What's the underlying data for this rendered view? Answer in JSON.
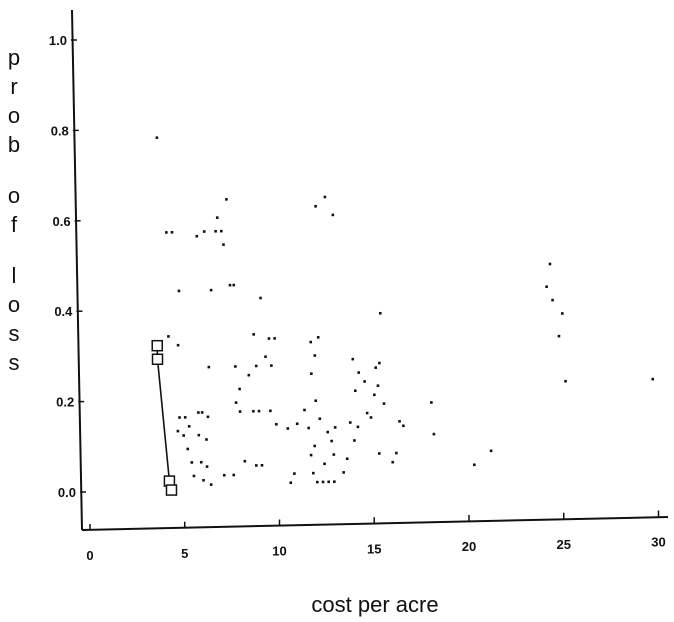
{
  "chart_data": {
    "type": "scatter",
    "title": "",
    "xlabel": "cost per acre",
    "ylabel": "prob of loss",
    "xlim": [
      0,
      30
    ],
    "ylim": [
      0,
      1.0
    ],
    "grid": false,
    "x_ticks": [
      "0",
      "5",
      "10",
      "15",
      "20",
      "25",
      "30"
    ],
    "y_ticks": [
      "0.0",
      "0.2",
      "0.4",
      "0.6",
      "0.8",
      "1.0"
    ],
    "series": [
      {
        "marker": "dot",
        "points": [
          [
            3.9,
            0.78
          ],
          [
            4.3,
            0.57
          ],
          [
            4.6,
            0.57
          ],
          [
            4.3,
            0.34
          ],
          [
            4.8,
            0.32
          ],
          [
            4.9,
            0.44
          ],
          [
            4.8,
            0.16
          ],
          [
            5.1,
            0.16
          ],
          [
            5.3,
            0.14
          ],
          [
            5.0,
            0.12
          ],
          [
            4.7,
            0.13
          ],
          [
            5.2,
            0.09
          ],
          [
            5.4,
            0.06
          ],
          [
            5.5,
            0.03
          ],
          [
            5.8,
            0.17
          ],
          [
            6.0,
            0.17
          ],
          [
            6.3,
            0.16
          ],
          [
            5.8,
            0.12
          ],
          [
            6.2,
            0.11
          ],
          [
            5.9,
            0.06
          ],
          [
            6.2,
            0.05
          ],
          [
            6.0,
            0.02
          ],
          [
            6.4,
            0.01
          ],
          [
            5.9,
            0.56
          ],
          [
            6.3,
            0.57
          ],
          [
            6.4,
            0.27
          ],
          [
            6.6,
            0.44
          ],
          [
            6.9,
            0.57
          ],
          [
            7.2,
            0.57
          ],
          [
            7.3,
            0.54
          ],
          [
            7.0,
            0.6
          ],
          [
            7.5,
            0.64
          ],
          [
            7.6,
            0.45
          ],
          [
            7.8,
            0.45
          ],
          [
            7.8,
            0.27
          ],
          [
            8.0,
            0.22
          ],
          [
            7.8,
            0.19
          ],
          [
            8.0,
            0.17
          ],
          [
            8.5,
            0.25
          ],
          [
            7.1,
            0.03
          ],
          [
            7.6,
            0.03
          ],
          [
            8.2,
            0.06
          ],
          [
            8.8,
            0.05
          ],
          [
            9.1,
            0.05
          ],
          [
            8.8,
            0.34
          ],
          [
            9.2,
            0.42
          ],
          [
            8.9,
            0.27
          ],
          [
            9.4,
            0.29
          ],
          [
            9.6,
            0.33
          ],
          [
            9.9,
            0.33
          ],
          [
            9.7,
            0.27
          ],
          [
            8.7,
            0.17
          ],
          [
            9.0,
            0.17
          ],
          [
            9.6,
            0.17
          ],
          [
            9.9,
            0.14
          ],
          [
            10.5,
            0.13
          ],
          [
            11.0,
            0.14
          ],
          [
            10.8,
            0.03
          ],
          [
            10.6,
            0.01
          ],
          [
            11.4,
            0.17
          ],
          [
            11.6,
            0.13
          ],
          [
            11.7,
            0.07
          ],
          [
            11.9,
            0.09
          ],
          [
            11.8,
            0.32
          ],
          [
            12.0,
            0.29
          ],
          [
            12.2,
            0.33
          ],
          [
            11.8,
            0.25
          ],
          [
            12.0,
            0.19
          ],
          [
            12.2,
            0.15
          ],
          [
            11.8,
            0.03
          ],
          [
            12.0,
            0.01
          ],
          [
            12.3,
            0.01
          ],
          [
            12.6,
            0.01
          ],
          [
            12.9,
            0.01
          ],
          [
            12.4,
            0.05
          ],
          [
            12.9,
            0.07
          ],
          [
            12.6,
            0.12
          ],
          [
            12.8,
            0.1
          ],
          [
            13.0,
            0.13
          ],
          [
            12.2,
            0.62
          ],
          [
            12.7,
            0.64
          ],
          [
            13.1,
            0.6
          ],
          [
            13.4,
            0.03
          ],
          [
            13.6,
            0.06
          ],
          [
            14.0,
            0.1
          ],
          [
            14.2,
            0.13
          ],
          [
            13.8,
            0.14
          ],
          [
            14.0,
            0.28
          ],
          [
            14.3,
            0.25
          ],
          [
            14.6,
            0.23
          ],
          [
            14.1,
            0.21
          ],
          [
            14.7,
            0.16
          ],
          [
            14.9,
            0.15
          ],
          [
            15.2,
            0.26
          ],
          [
            15.4,
            0.27
          ],
          [
            15.3,
            0.22
          ],
          [
            15.1,
            0.2
          ],
          [
            15.6,
            0.18
          ],
          [
            15.3,
            0.07
          ],
          [
            15.5,
            0.38
          ],
          [
            16.0,
            0.05
          ],
          [
            16.4,
            0.14
          ],
          [
            16.6,
            0.13
          ],
          [
            16.2,
            0.07
          ],
          [
            18.1,
            0.18
          ],
          [
            18.2,
            0.11
          ],
          [
            20.3,
            0.04
          ],
          [
            21.2,
            0.07
          ],
          [
            24.3,
            0.43
          ],
          [
            24.5,
            0.48
          ],
          [
            24.6,
            0.4
          ],
          [
            24.9,
            0.32
          ],
          [
            25.1,
            0.37
          ],
          [
            25.2,
            0.22
          ],
          [
            29.8,
            0.22
          ]
        ]
      },
      {
        "marker": "open-square",
        "connected": true,
        "points": [
          [
            3.7,
            0.32
          ],
          [
            3.7,
            0.29
          ],
          [
            4.2,
            0.02
          ],
          [
            4.3,
            0.0
          ]
        ]
      }
    ]
  }
}
